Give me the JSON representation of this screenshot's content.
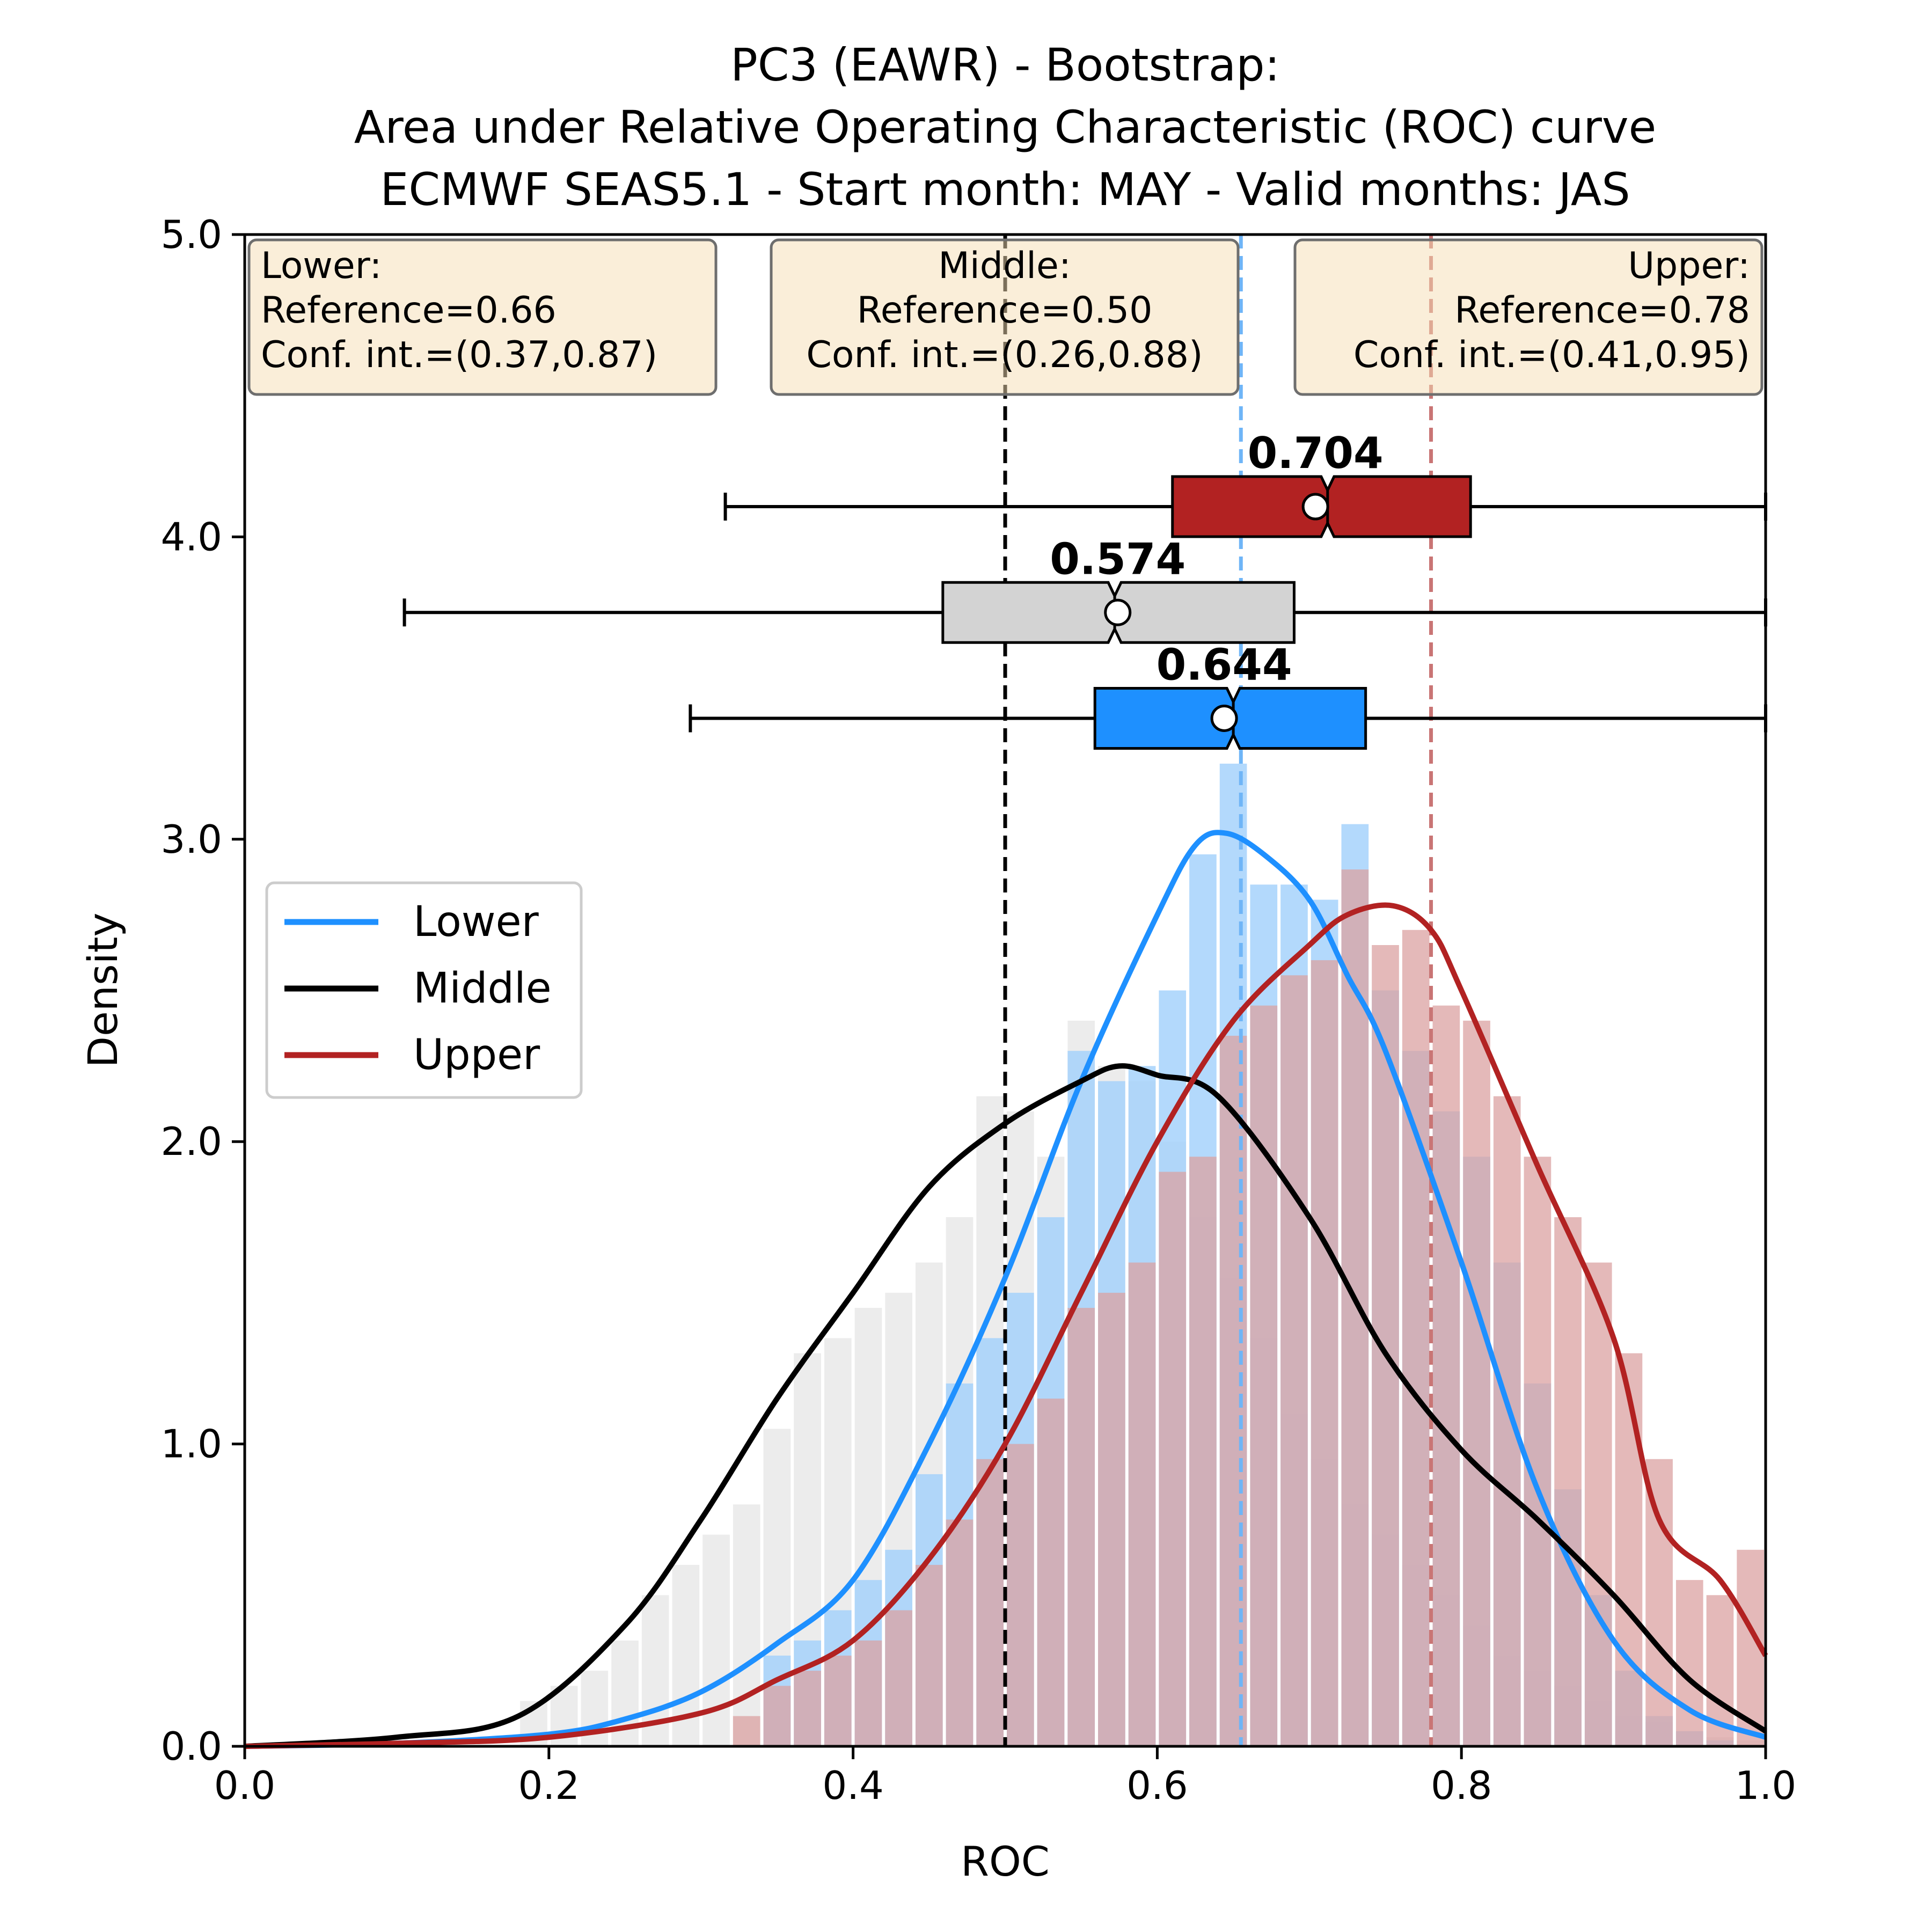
{
  "chart_data": {
    "type": "histogram-kde-boxplot",
    "title_lines": [
      "PC3 (EAWR) - Bootstrap:",
      "Area under Relative Operating Characteristic (ROC) curve",
      "ECMWF SEAS5.1 - Start month: MAY - Valid months: JAS"
    ],
    "xlabel": "ROC",
    "ylabel": "Density",
    "xlim": [
      0.0,
      1.0
    ],
    "ylim": [
      0.0,
      5.0
    ],
    "x_ticks": [
      0.0,
      0.2,
      0.4,
      0.6,
      0.8,
      1.0
    ],
    "x_tick_labels": [
      "0.0",
      "0.2",
      "0.4",
      "0.6",
      "0.8",
      "1.0"
    ],
    "y_ticks": [
      0.0,
      1.0,
      2.0,
      3.0,
      4.0,
      5.0
    ],
    "y_tick_labels": [
      "0.0",
      "1.0",
      "2.0",
      "3.0",
      "4.0",
      "5.0"
    ],
    "bin_width": 0.02,
    "bin_starts": [
      0.18,
      0.2,
      0.22,
      0.24,
      0.26,
      0.28,
      0.3,
      0.32,
      0.34,
      0.36,
      0.38,
      0.4,
      0.42,
      0.44,
      0.46,
      0.48,
      0.5,
      0.52,
      0.54,
      0.56,
      0.58,
      0.6,
      0.62,
      0.64,
      0.66,
      0.68,
      0.7,
      0.72,
      0.74,
      0.76,
      0.78,
      0.8,
      0.82,
      0.84,
      0.86,
      0.88,
      0.9,
      0.92,
      0.94,
      0.96,
      0.98
    ],
    "legend": {
      "location": "center-left",
      "entries": [
        {
          "label": "Lower",
          "color": "#1e90ff"
        },
        {
          "label": "Middle",
          "color": "#000000"
        },
        {
          "label": "Upper",
          "color": "#b22222"
        }
      ]
    },
    "series": [
      {
        "name": "Lower",
        "color": "#1e90ff",
        "hist_color": "#a6d2fc",
        "histogram": [
          0,
          0,
          0,
          0,
          0,
          0,
          0,
          0,
          0.3,
          0.35,
          0.45,
          0.55,
          0.65,
          0.9,
          1.2,
          1.35,
          1.5,
          1.75,
          2.3,
          2.2,
          2.25,
          2.5,
          2.95,
          3.25,
          2.85,
          2.85,
          2.8,
          3.05,
          2.5,
          2.3,
          2.1,
          1.95,
          1.6,
          1.2,
          0.85,
          0.5,
          0.25,
          0.1,
          0.05,
          0.02,
          0
        ],
        "kde_x": [
          0.0,
          0.1,
          0.2,
          0.25,
          0.3,
          0.35,
          0.4,
          0.45,
          0.5,
          0.55,
          0.6,
          0.625,
          0.645,
          0.67,
          0.7,
          0.725,
          0.75,
          0.8,
          0.85,
          0.9,
          0.95,
          1.0
        ],
        "kde_y": [
          0.0,
          0.01,
          0.04,
          0.09,
          0.18,
          0.34,
          0.55,
          1.0,
          1.55,
          2.2,
          2.75,
          2.98,
          3.02,
          2.95,
          2.8,
          2.55,
          2.3,
          1.6,
          0.85,
          0.35,
          0.12,
          0.03
        ],
        "reference": 0.66,
        "conf_int": [
          0.37,
          0.87
        ],
        "box": {
          "whisker_low": 0.293,
          "q1": 0.559,
          "median": 0.65,
          "q3": 0.737,
          "whisker_high": 1.0,
          "mean": 0.644,
          "label": "0.644",
          "y": 3.4
        }
      },
      {
        "name": "Middle",
        "color": "#000000",
        "hist_color": "#ececec",
        "histogram": [
          0.15,
          0.2,
          0.25,
          0.35,
          0.5,
          0.6,
          0.7,
          0.8,
          1.05,
          1.3,
          1.35,
          1.45,
          1.5,
          1.6,
          1.75,
          2.15,
          2.1,
          1.95,
          2.4,
          2.25,
          2.2,
          2.0,
          1.75,
          1.55,
          1.35,
          1.1,
          0.95,
          0.8,
          0.7,
          0.6,
          0.5,
          0.4,
          0.3,
          0.25,
          0.2,
          0.15,
          0.1,
          0.08,
          0.05,
          0.03,
          0.02
        ],
        "kde_x": [
          0.0,
          0.1,
          0.18,
          0.25,
          0.3,
          0.35,
          0.4,
          0.45,
          0.5,
          0.55,
          0.575,
          0.6,
          0.64,
          0.7,
          0.75,
          0.8,
          0.85,
          0.9,
          0.95,
          1.0
        ],
        "kde_y": [
          0.0,
          0.03,
          0.1,
          0.4,
          0.75,
          1.15,
          1.5,
          1.85,
          2.06,
          2.2,
          2.25,
          2.22,
          2.15,
          1.75,
          1.3,
          0.98,
          0.75,
          0.5,
          0.22,
          0.05
        ],
        "reference": 0.5,
        "conf_int": [
          0.26,
          0.88
        ],
        "box": {
          "whisker_low": 0.105,
          "q1": 0.459,
          "median": 0.572,
          "q3": 0.69,
          "whisker_high": 1.0,
          "mean": 0.574,
          "label": "0.574",
          "y": 3.75
        }
      },
      {
        "name": "Upper",
        "color": "#b22222",
        "hist_color": "#dba1a1",
        "histogram": [
          0,
          0,
          0,
          0,
          0,
          0,
          0,
          0.1,
          0.2,
          0.25,
          0.3,
          0.35,
          0.45,
          0.6,
          0.75,
          0.95,
          1.0,
          1.15,
          1.45,
          1.5,
          1.6,
          1.9,
          1.95,
          2.35,
          2.45,
          2.55,
          2.6,
          2.9,
          2.65,
          2.7,
          2.45,
          2.4,
          2.15,
          1.95,
          1.75,
          1.6,
          1.3,
          0.95,
          0.55,
          0.5,
          0.65
        ],
        "kde_x": [
          0.0,
          0.1,
          0.2,
          0.3,
          0.35,
          0.4,
          0.45,
          0.5,
          0.55,
          0.6,
          0.65,
          0.7,
          0.725,
          0.755,
          0.78,
          0.8,
          0.85,
          0.9,
          0.93,
          0.97,
          1.0
        ],
        "kde_y": [
          0.0,
          0.01,
          0.03,
          0.11,
          0.22,
          0.35,
          0.62,
          1.0,
          1.5,
          2.0,
          2.4,
          2.65,
          2.75,
          2.78,
          2.7,
          2.5,
          1.92,
          1.35,
          0.75,
          0.55,
          0.3
        ],
        "reference": 0.78,
        "conf_int": [
          0.41,
          0.95
        ],
        "box": {
          "whisker_low": 0.316,
          "q1": 0.61,
          "median": 0.712,
          "q3": 0.806,
          "whisker_high": 1.0,
          "mean": 0.704,
          "label": "0.704",
          "y": 4.1
        }
      }
    ],
    "vertical_lines": [
      {
        "x": 0.5,
        "color": "#000000",
        "style": "dashed"
      },
      {
        "x": 0.655,
        "color": "#6fb5f7",
        "style": "dashed"
      },
      {
        "x": 0.78,
        "color": "#c97575",
        "style": "dashed"
      }
    ],
    "annotation_boxes": [
      {
        "title": "Lower:",
        "ref_text": "Reference=0.66",
        "ci_text": "Conf. int.=(0.37,0.87)",
        "align": "left"
      },
      {
        "title": "Middle:",
        "ref_text": "Reference=0.50",
        "ci_text": "Conf. int.=(0.26,0.88)",
        "align": "center"
      },
      {
        "title": "Upper:",
        "ref_text": "Reference=0.78",
        "ci_text": "Conf. int.=(0.41,0.95)",
        "align": "right"
      }
    ]
  }
}
